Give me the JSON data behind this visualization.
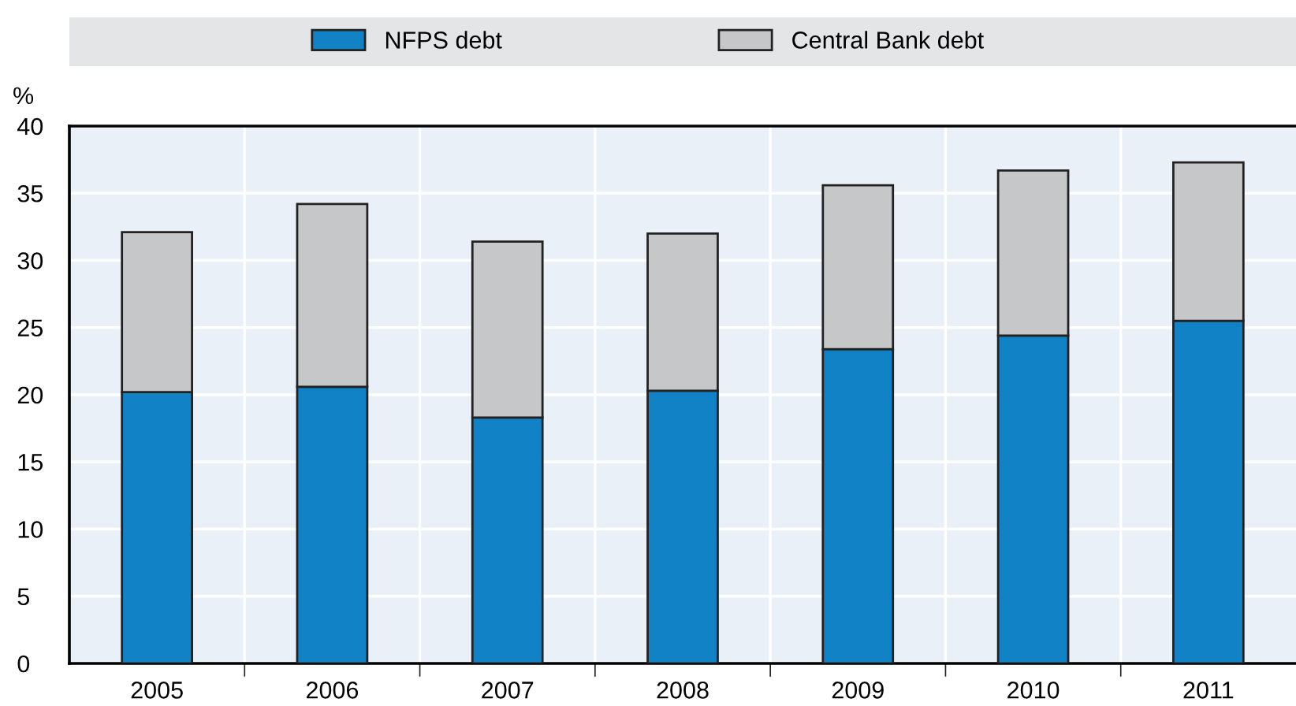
{
  "chart_data": {
    "type": "bar",
    "stacked": true,
    "ylabel": "%",
    "categories": [
      "2005",
      "2006",
      "2007",
      "2008",
      "2009",
      "2010",
      "2011"
    ],
    "series": [
      {
        "name": "NFPS debt",
        "color": "#1282c6",
        "values": [
          20.2,
          20.6,
          18.3,
          20.3,
          23.4,
          24.4,
          25.5
        ]
      },
      {
        "name": "Central Bank debt",
        "color": "#c6c7c9",
        "values": [
          11.9,
          13.6,
          13.1,
          11.7,
          12.2,
          12.3,
          11.8
        ]
      }
    ],
    "ylim": [
      0,
      40
    ],
    "yticks": [
      0,
      5,
      10,
      15,
      20,
      25,
      30,
      35,
      40
    ],
    "grid": true,
    "legend": "top"
  }
}
